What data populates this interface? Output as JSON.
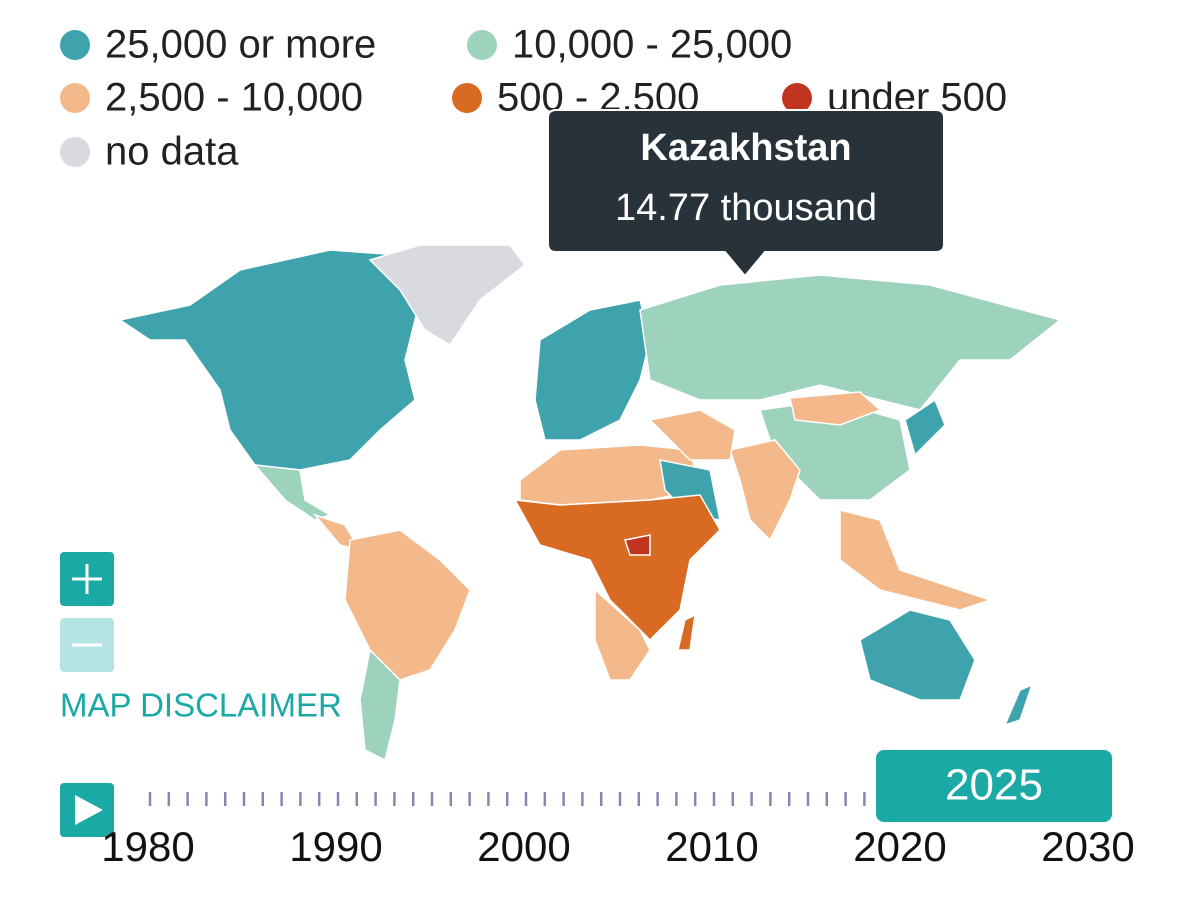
{
  "legend": [
    {
      "label": "25,000 or more",
      "color": "#3fa3ae"
    },
    {
      "label": "10,000 - 25,000",
      "color": "#9dd3bd"
    },
    {
      "label": "2,500 - 10,000",
      "color": "#f3b98a"
    },
    {
      "label": "500 - 2,500",
      "color": "#d86a22"
    },
    {
      "label": "under 500",
      "color": "#c1341f"
    },
    {
      "label": "no data",
      "color": "#d9dadf"
    }
  ],
  "tooltip": {
    "title": "Kazakhstan",
    "value": "14.77 thousand"
  },
  "disclaimer": "MAP DISCLAIMER",
  "timeline": {
    "range": [
      1980,
      2030
    ],
    "ticks": [
      1980,
      1990,
      2000,
      2010,
      2020,
      2030
    ],
    "current": 2025
  }
}
